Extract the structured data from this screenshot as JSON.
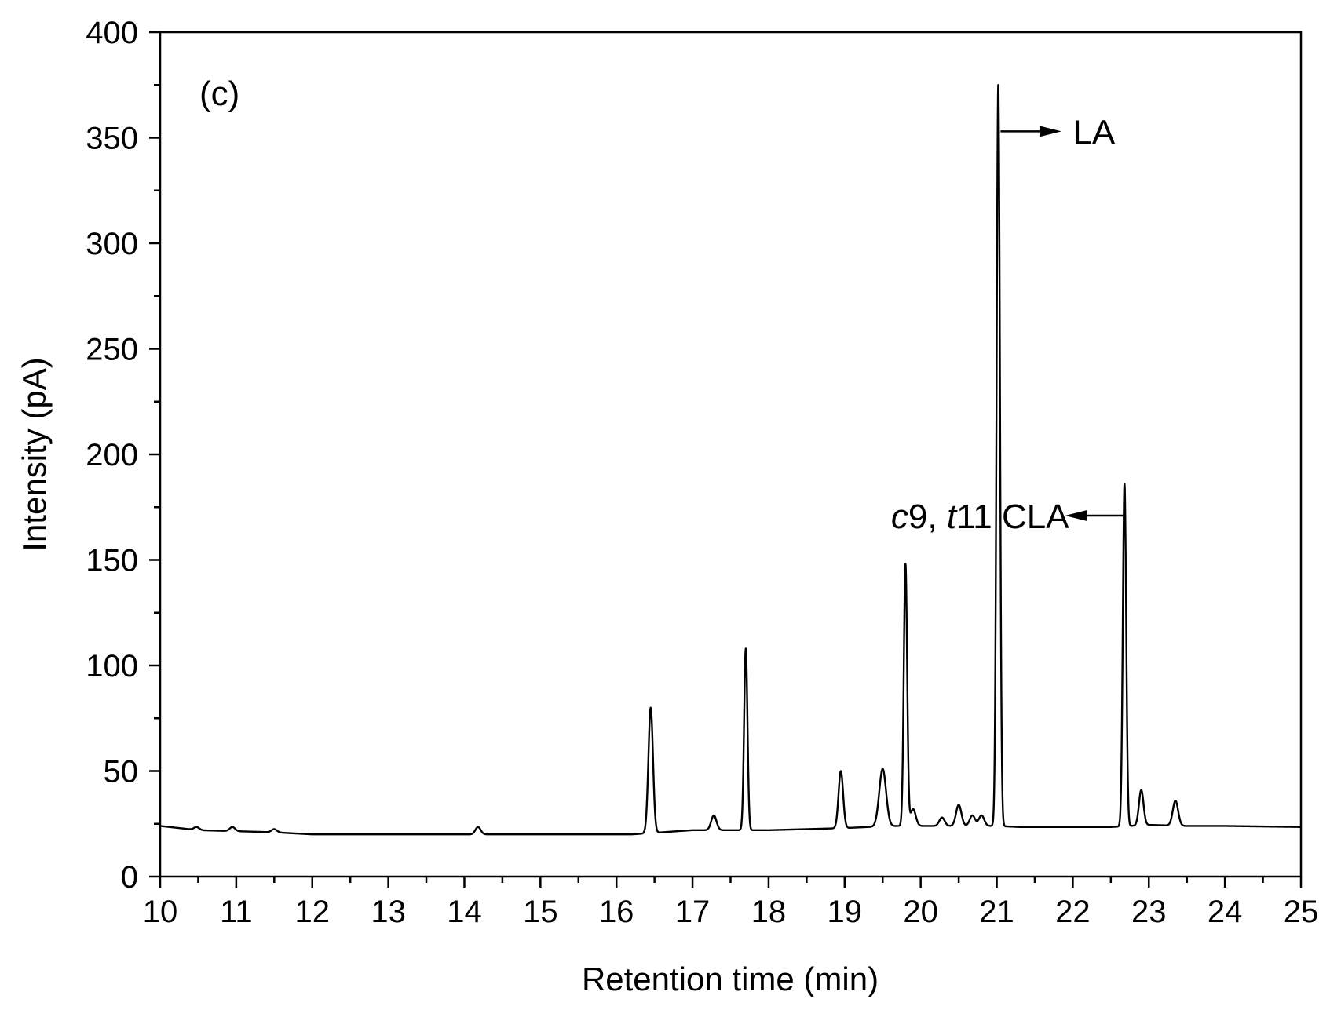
{
  "chart_data": {
    "type": "line",
    "panel_label": "(c)",
    "xlabel": "Retention time (min)",
    "ylabel": "Intensity (pA)",
    "xlim": [
      10,
      25
    ],
    "ylim": [
      0,
      400
    ],
    "x_ticks": [
      10,
      11,
      12,
      13,
      14,
      15,
      16,
      17,
      18,
      19,
      20,
      21,
      22,
      23,
      24,
      25
    ],
    "y_ticks": [
      0,
      50,
      100,
      150,
      200,
      250,
      300,
      350,
      400
    ],
    "x_minor_step": 0.5,
    "y_minor_step": 25,
    "grid": false,
    "line_color": "#000000",
    "baseline": [
      [
        10.0,
        24
      ],
      [
        10.5,
        22
      ],
      [
        11.0,
        21.5
      ],
      [
        11.5,
        21
      ],
      [
        12.0,
        20
      ],
      [
        13.0,
        20
      ],
      [
        14.0,
        20
      ],
      [
        14.3,
        20
      ],
      [
        15.0,
        20
      ],
      [
        16.0,
        20
      ],
      [
        16.2,
        20
      ],
      [
        16.6,
        21
      ],
      [
        17.0,
        22
      ],
      [
        17.5,
        22
      ],
      [
        18.0,
        22
      ],
      [
        18.5,
        22.5
      ],
      [
        19.0,
        23
      ],
      [
        19.3,
        23.5
      ],
      [
        19.7,
        24
      ],
      [
        20.0,
        24
      ],
      [
        20.5,
        24
      ],
      [
        21.0,
        24
      ],
      [
        21.3,
        23.5
      ],
      [
        22.0,
        23.5
      ],
      [
        22.5,
        23.5
      ],
      [
        23.0,
        24.5
      ],
      [
        23.5,
        24
      ],
      [
        24.0,
        24
      ],
      [
        25.0,
        23.5
      ]
    ],
    "peaks": [
      {
        "x": 10.48,
        "y": 23.5
      },
      {
        "x": 10.95,
        "y": 23.5
      },
      {
        "x": 11.5,
        "y": 22.5
      },
      {
        "x": 14.18,
        "y": 23.5
      },
      {
        "x": 16.45,
        "y": 80
      },
      {
        "x": 17.28,
        "y": 29
      },
      {
        "x": 17.7,
        "y": 108
      },
      {
        "x": 18.95,
        "y": 50
      },
      {
        "x": 19.5,
        "y": 51
      },
      {
        "x": 19.8,
        "y": 148
      },
      {
        "x": 19.9,
        "y": 32
      },
      {
        "x": 20.28,
        "y": 28
      },
      {
        "x": 20.5,
        "y": 34
      },
      {
        "x": 20.68,
        "y": 29
      },
      {
        "x": 20.8,
        "y": 29
      },
      {
        "x": 21.02,
        "y": 375
      },
      {
        "x": 22.68,
        "y": 186
      },
      {
        "x": 22.9,
        "y": 41
      },
      {
        "x": 23.35,
        "y": 36
      }
    ],
    "annotations": [
      {
        "label": "LA",
        "arrow_from": [
          21.05,
          353
        ],
        "arrow_to": [
          21.75,
          353
        ],
        "text_at": [
          22.0,
          353
        ],
        "direction": "right"
      },
      {
        "label_parts": [
          {
            "text": "c",
            "italic": true
          },
          {
            "text": "9, "
          },
          {
            "text": "t",
            "italic": true
          },
          {
            "text": "11 CLA"
          }
        ],
        "arrow_from": [
          22.68,
          171
        ],
        "arrow_to": [
          22.0,
          171
        ],
        "text_at": [
          21.95,
          171
        ],
        "direction": "left"
      }
    ]
  }
}
